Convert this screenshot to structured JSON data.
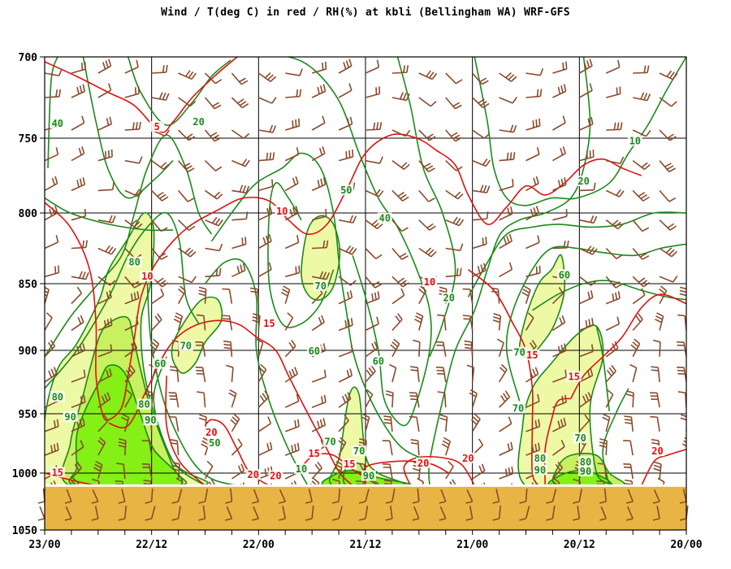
{
  "chart_data": {
    "type": "time-height cross-section",
    "title": "Wind / T(deg C) in red / RH(%) at kbli (Bellingham WA)  WRF-GFS",
    "y_axis": {
      "ticks": [
        "700",
        "750",
        "800",
        "850",
        "900",
        "950",
        "1000",
        "1050"
      ],
      "range": [
        700,
        1050
      ],
      "inverted": true
    },
    "x_axis": {
      "ticks": [
        "23/00",
        "22/12",
        "22/00",
        "21/12",
        "21/00",
        "20/12",
        "20/00"
      ]
    },
    "grid": true,
    "colors": {
      "temperature": "#e01010",
      "rh_line": "#1a8a1a",
      "rh_70_fill": "#eef9a6",
      "rh_80_fill": "#c8f060",
      "rh_90_fill": "#84f016",
      "ground": "#e8b444",
      "wind_barb": "#8b4a2c"
    },
    "rh_labels": [
      {
        "text": "40",
        "t": 0.02,
        "p": 742
      },
      {
        "text": "20",
        "t": 0.24,
        "p": 741
      },
      {
        "text": "50",
        "t": 0.47,
        "p": 786
      },
      {
        "text": "40",
        "t": 0.53,
        "p": 805
      },
      {
        "text": "10",
        "t": 0.92,
        "p": 753
      },
      {
        "text": "20",
        "t": 0.84,
        "p": 780
      },
      {
        "text": "80",
        "t": 0.14,
        "p": 836
      },
      {
        "text": "70",
        "t": 0.22,
        "p": 898
      },
      {
        "text": "60",
        "t": 0.18,
        "p": 912
      },
      {
        "text": "70",
        "t": 0.43,
        "p": 853
      },
      {
        "text": "60",
        "t": 0.42,
        "p": 902
      },
      {
        "text": "60",
        "t": 0.52,
        "p": 910
      },
      {
        "text": "20",
        "t": 0.63,
        "p": 862
      },
      {
        "text": "60",
        "t": 0.81,
        "p": 845
      },
      {
        "text": "70",
        "t": 0.74,
        "p": 903
      },
      {
        "text": "80",
        "t": 0.02,
        "p": 938
      },
      {
        "text": "90",
        "t": 0.04,
        "p": 954
      },
      {
        "text": "80",
        "t": 0.155,
        "p": 944
      },
      {
        "text": "90",
        "t": 0.165,
        "p": 957
      },
      {
        "text": "50",
        "t": 0.265,
        "p": 976
      },
      {
        "text": "70",
        "t": 0.445,
        "p": 975
      },
      {
        "text": "70",
        "t": 0.49,
        "p": 983
      },
      {
        "text": "90",
        "t": 0.505,
        "p": 1004
      },
      {
        "text": "70",
        "t": 0.738,
        "p": 947
      },
      {
        "text": "80",
        "t": 0.772,
        "p": 989
      },
      {
        "text": "90",
        "t": 0.772,
        "p": 999
      },
      {
        "text": "70",
        "t": 0.835,
        "p": 972
      },
      {
        "text": "80",
        "t": 0.843,
        "p": 992
      },
      {
        "text": "90",
        "t": 0.843,
        "p": 1000
      },
      {
        "text": "10",
        "t": 0.4,
        "p": 998
      }
    ],
    "temp_labels": [
      {
        "text": "5",
        "t": 0.175,
        "p": 744
      },
      {
        "text": "10",
        "t": 0.37,
        "p": 800
      },
      {
        "text": "10",
        "t": 0.16,
        "p": 846
      },
      {
        "text": "15",
        "t": 0.35,
        "p": 881
      },
      {
        "text": "10",
        "t": 0.6,
        "p": 850
      },
      {
        "text": "15",
        "t": 0.76,
        "p": 905
      },
      {
        "text": "15",
        "t": 0.825,
        "p": 922
      },
      {
        "text": "20",
        "t": 0.26,
        "p": 967
      },
      {
        "text": "15",
        "t": 0.42,
        "p": 985
      },
      {
        "text": "15",
        "t": 0.475,
        "p": 994
      },
      {
        "text": "20",
        "t": 0.325,
        "p": 1003
      },
      {
        "text": "20",
        "t": 0.36,
        "p": 1004
      },
      {
        "text": "20",
        "t": 0.59,
        "p": 993
      },
      {
        "text": "20",
        "t": 0.66,
        "p": 989
      },
      {
        "text": "20",
        "t": 0.955,
        "p": 983
      },
      {
        "text": "15",
        "t": 0.02,
        "p": 1001
      }
    ]
  }
}
